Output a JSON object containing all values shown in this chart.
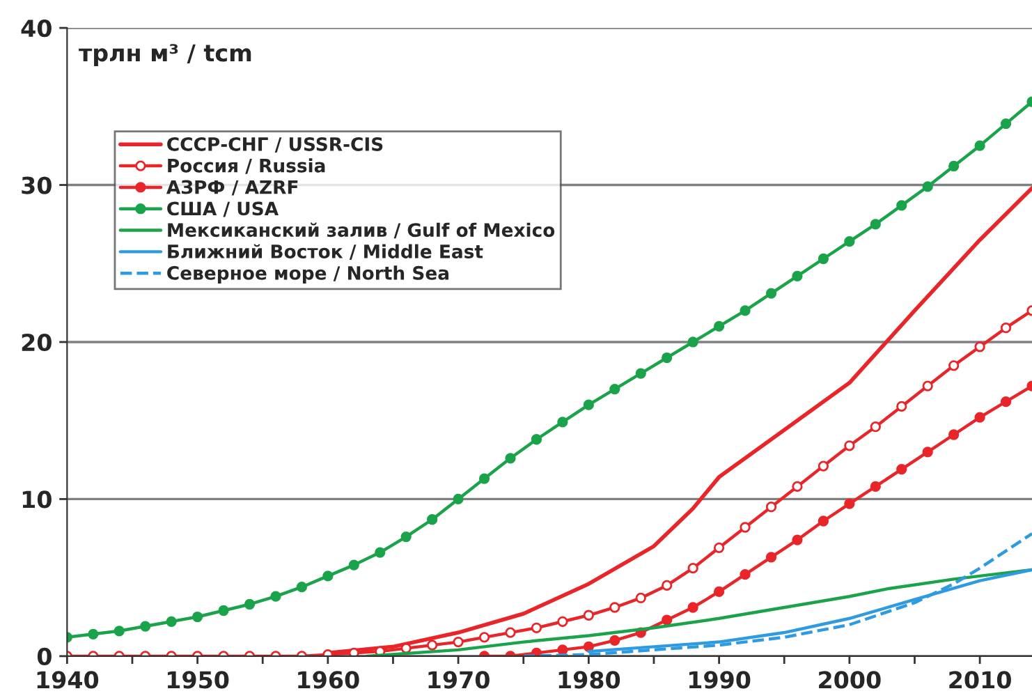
{
  "chart_data": {
    "type": "line",
    "ylabel": "трлн м³ / tcm",
    "xlim": [
      1940,
      2014
    ],
    "ylim": [
      0,
      40
    ],
    "xticks": [
      1940,
      {
        "value": 1945,
        "label": null
      },
      1950,
      {
        "value": 1955,
        "label": null
      },
      1960,
      {
        "value": 1965,
        "label": null
      },
      1970,
      {
        "value": 1975,
        "label": null
      },
      1980,
      {
        "value": 1985,
        "label": null
      },
      1990,
      {
        "value": 1995,
        "label": null
      },
      2000,
      {
        "value": 2005,
        "label": null
      },
      2010
    ],
    "yticks": [
      0,
      10,
      20,
      30,
      40
    ],
    "grid": "y",
    "legend": "top left",
    "series": [
      {
        "name": "СССР-СНГ / USSR-CIS",
        "color": "#e8262a",
        "marker": "none",
        "line_style": "solid",
        "x": [
          1960,
          1965,
          1970,
          1975,
          1980,
          1985,
          1988,
          1990,
          1995,
          2000,
          2005,
          2010,
          2014
        ],
        "values": [
          0.2,
          0.6,
          1.5,
          2.7,
          4.6,
          7.0,
          9.4,
          11.4,
          14.4,
          17.4,
          22.0,
          26.5,
          29.8
        ]
      },
      {
        "name": "Россия / Russia",
        "color": "#e8262a",
        "marker": "circle_open",
        "line_style": "solid",
        "x": [
          1940,
          1942,
          1944,
          1946,
          1948,
          1950,
          1952,
          1954,
          1956,
          1958,
          1960,
          1962,
          1964,
          1966,
          1968,
          1970,
          1972,
          1974,
          1976,
          1978,
          1980,
          1982,
          1984,
          1986,
          1988,
          1990,
          1992,
          1994,
          1996,
          1998,
          2000,
          2002,
          2004,
          2006,
          2008,
          2010,
          2012,
          2014
        ],
        "values": [
          0,
          0,
          0,
          0,
          0,
          0,
          0,
          0,
          0,
          0,
          0.1,
          0.2,
          0.3,
          0.5,
          0.7,
          0.9,
          1.2,
          1.5,
          1.8,
          2.2,
          2.6,
          3.1,
          3.7,
          4.5,
          5.6,
          6.9,
          8.2,
          9.5,
          10.8,
          12.1,
          13.4,
          14.6,
          15.9,
          17.2,
          18.5,
          19.7,
          20.9,
          22.0
        ]
      },
      {
        "name": "АЗРФ / AZRF",
        "color": "#e8262a",
        "marker": "circle",
        "line_style": "solid",
        "x": [
          1972,
          1974,
          1976,
          1978,
          1980,
          1982,
          1984,
          1986,
          1988,
          1990,
          1992,
          1994,
          1996,
          1998,
          2000,
          2002,
          2004,
          2006,
          2008,
          2010,
          2012,
          2014
        ],
        "values": [
          0,
          0,
          0.2,
          0.4,
          0.6,
          1.0,
          1.5,
          2.3,
          3.1,
          4.1,
          5.2,
          6.3,
          7.4,
          8.6,
          9.7,
          10.8,
          11.9,
          13.0,
          14.1,
          15.2,
          16.2,
          17.2
        ]
      },
      {
        "name": "США / USA",
        "color": "#1aa34a",
        "marker": "circle",
        "line_style": "solid",
        "x": [
          1940,
          1942,
          1944,
          1946,
          1948,
          1950,
          1952,
          1954,
          1956,
          1958,
          1960,
          1962,
          1964,
          1966,
          1968,
          1970,
          1972,
          1974,
          1976,
          1978,
          1980,
          1982,
          1984,
          1986,
          1988,
          1990,
          1992,
          1994,
          1996,
          1998,
          2000,
          2002,
          2004,
          2006,
          2008,
          2010,
          2012,
          2014
        ],
        "values": [
          1.2,
          1.4,
          1.6,
          1.9,
          2.2,
          2.5,
          2.9,
          3.3,
          3.8,
          4.4,
          5.1,
          5.8,
          6.6,
          7.6,
          8.7,
          10.0,
          11.3,
          12.6,
          13.8,
          14.9,
          16.0,
          17.0,
          18.0,
          19.0,
          20.0,
          21.0,
          22.0,
          23.1,
          24.2,
          25.3,
          26.4,
          27.5,
          28.7,
          29.9,
          31.2,
          32.5,
          33.9,
          35.3
        ]
      },
      {
        "name": "Мексиканский залив / Gulf of Mexico",
        "color": "#1aa34a",
        "marker": "none",
        "line_style": "solid",
        "x": [
          1963,
          1970,
          1975,
          1980,
          1985,
          1990,
          1995,
          2000,
          2003,
          2008,
          2014
        ],
        "values": [
          0,
          0.4,
          0.9,
          1.3,
          1.8,
          2.4,
          3.1,
          3.8,
          4.3,
          4.9,
          5.5
        ]
      },
      {
        "name": "Ближний Восток / Middle East",
        "color": "#2e9be0",
        "marker": "none",
        "line_style": "solid",
        "x": [
          1980,
          1985,
          1990,
          1995,
          2000,
          2005,
          2010,
          2014
        ],
        "values": [
          0.3,
          0.6,
          0.9,
          1.5,
          2.4,
          3.6,
          4.8,
          5.5
        ]
      },
      {
        "name": "Северное море / North Sea",
        "color": "#2e9be0",
        "marker": "none",
        "line_style": "dashed",
        "x": [
          1975,
          1980,
          1985,
          1990,
          1995,
          2000,
          2005,
          2008,
          2010,
          2012,
          2014
        ],
        "values": [
          0,
          0.1,
          0.4,
          0.7,
          1.2,
          2.0,
          3.4,
          4.6,
          5.6,
          6.7,
          7.8
        ]
      }
    ]
  }
}
